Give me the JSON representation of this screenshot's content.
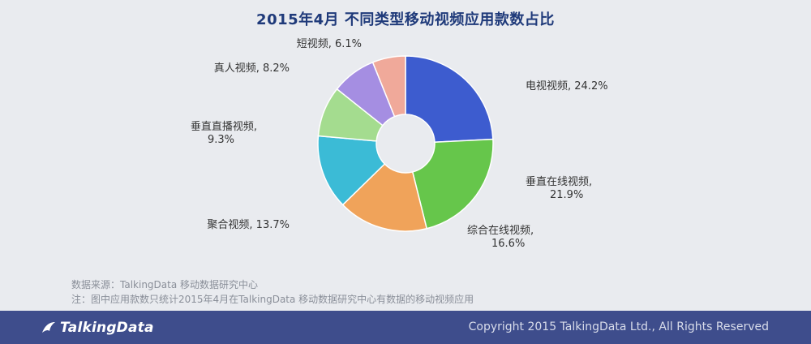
{
  "header": {
    "title": "2015年4月  不同类型移动视频应用款数占比"
  },
  "chart_data": {
    "type": "pie",
    "title": "2015年4月  不同类型移动视频应用款数占比",
    "donut": true,
    "slices": [
      {
        "label": "电视视频, 24.2%",
        "name": "电视视频",
        "value": 24.2,
        "color": "#3d5ccf"
      },
      {
        "label": "垂直在线视频,\n21.9%",
        "name": "垂直在线视频",
        "value": 21.9,
        "color": "#66c64b"
      },
      {
        "label": "综合在线视频,\n16.6%",
        "name": "综合在线视频",
        "value": 16.6,
        "color": "#f0a35a"
      },
      {
        "label": "聚合视频, 13.7%",
        "name": "聚合视频",
        "value": 13.7,
        "color": "#3bbbd6"
      },
      {
        "label": "垂直直播视频,\n9.3%",
        "name": "垂直直播视频",
        "value": 9.3,
        "color": "#a4dc8f"
      },
      {
        "label": "真人视频, 8.2%",
        "name": "真人视频",
        "value": 8.2,
        "color": "#a58ee2"
      },
      {
        "label": "短视频, 6.1%",
        "name": "短视频",
        "value": 6.1,
        "color": "#f0a99a"
      }
    ]
  },
  "source": {
    "line1": "数据来源：TalkingData 移动数据研究中心",
    "line2": "注：图中应用款数只统计2015年4月在TalkingData 移动数据研究中心有数据的移动视频应用"
  },
  "footer": {
    "logo_text": "TalkingData",
    "copyright": "Copyright 2015 TalkingData Ltd., All Rights Reserved",
    "background": "#3e4d8c"
  }
}
